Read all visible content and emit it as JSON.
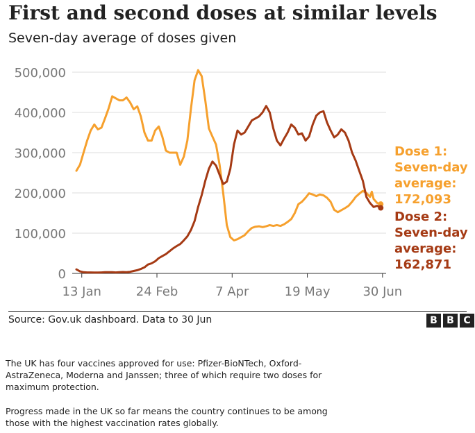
{
  "title": "First and second doses at similar levels",
  "subtitle": "Seven-day average of doses given",
  "source": "Source: Gov.uk dashboard. Data to 30 Jun",
  "logo": {
    "letters": [
      "B",
      "B",
      "C"
    ]
  },
  "paragraphs": [
    "The UK has four vaccines approved for use: Pfizer-BioNTech, Oxford-AstraZeneca, Moderna and Janssen; three of which require two doses for maximum protection.",
    "Progress made in the UK so far means the country continues to be among those with the highest vaccination rates globally."
  ],
  "chart_data": {
    "type": "line",
    "title": "First and second doses at similar levels",
    "subtitle": "Seven-day average of doses given",
    "x_start": "2021-01-10",
    "x_ticks": [
      {
        "day": 3,
        "label": "13 Jan"
      },
      {
        "day": 45,
        "label": "24 Feb"
      },
      {
        "day": 87,
        "label": "7 Apr"
      },
      {
        "day": 129,
        "label": "19 May"
      },
      {
        "day": 171,
        "label": "30 Jun"
      }
    ],
    "xlim": [
      0,
      173
    ],
    "ylim": [
      0,
      500000
    ],
    "y_ticks": [
      {
        "value": 0,
        "label": "0"
      },
      {
        "value": 100000,
        "label": "100,000"
      },
      {
        "value": 200000,
        "label": "200,000"
      },
      {
        "value": 300000,
        "label": "300,000"
      },
      {
        "value": 400000,
        "label": "400,000"
      },
      {
        "value": 500000,
        "label": "500,000"
      }
    ],
    "grid": true,
    "series": [
      {
        "name": "Dose 1",
        "color": "#f6a02d",
        "annotation": [
          "Dose 1:",
          "Seven-day",
          "average:",
          "172,093"
        ],
        "points": [
          [
            0,
            255000
          ],
          [
            2,
            270000
          ],
          [
            4,
            300000
          ],
          [
            6,
            330000
          ],
          [
            8,
            355000
          ],
          [
            10,
            370000
          ],
          [
            12,
            358000
          ],
          [
            14,
            362000
          ],
          [
            16,
            385000
          ],
          [
            18,
            410000
          ],
          [
            20,
            440000
          ],
          [
            22,
            435000
          ],
          [
            24,
            430000
          ],
          [
            26,
            430000
          ],
          [
            28,
            437000
          ],
          [
            30,
            425000
          ],
          [
            32,
            408000
          ],
          [
            34,
            415000
          ],
          [
            36,
            390000
          ],
          [
            38,
            350000
          ],
          [
            40,
            330000
          ],
          [
            42,
            330000
          ],
          [
            44,
            355000
          ],
          [
            46,
            365000
          ],
          [
            48,
            340000
          ],
          [
            50,
            305000
          ],
          [
            52,
            300000
          ],
          [
            54,
            300000
          ],
          [
            56,
            300000
          ],
          [
            58,
            270000
          ],
          [
            60,
            290000
          ],
          [
            62,
            330000
          ],
          [
            64,
            410000
          ],
          [
            66,
            480000
          ],
          [
            68,
            505000
          ],
          [
            70,
            490000
          ],
          [
            72,
            430000
          ],
          [
            74,
            360000
          ],
          [
            76,
            340000
          ],
          [
            78,
            320000
          ],
          [
            80,
            270000
          ],
          [
            82,
            200000
          ],
          [
            84,
            120000
          ],
          [
            86,
            90000
          ],
          [
            88,
            82000
          ],
          [
            90,
            85000
          ],
          [
            92,
            90000
          ],
          [
            94,
            95000
          ],
          [
            96,
            105000
          ],
          [
            98,
            113000
          ],
          [
            100,
            116000
          ],
          [
            102,
            117000
          ],
          [
            104,
            115000
          ],
          [
            106,
            117000
          ],
          [
            108,
            120000
          ],
          [
            110,
            118000
          ],
          [
            112,
            120000
          ],
          [
            114,
            118000
          ],
          [
            116,
            122000
          ],
          [
            118,
            128000
          ],
          [
            120,
            135000
          ],
          [
            122,
            150000
          ],
          [
            124,
            172000
          ],
          [
            126,
            178000
          ],
          [
            128,
            188000
          ],
          [
            130,
            199000
          ],
          [
            132,
            196000
          ],
          [
            134,
            192000
          ],
          [
            136,
            196000
          ],
          [
            138,
            194000
          ],
          [
            140,
            188000
          ],
          [
            142,
            178000
          ],
          [
            144,
            158000
          ],
          [
            146,
            152000
          ],
          [
            148,
            157000
          ],
          [
            150,
            162000
          ],
          [
            152,
            168000
          ],
          [
            154,
            178000
          ],
          [
            156,
            190000
          ],
          [
            158,
            198000
          ],
          [
            160,
            205000
          ],
          [
            162,
            200000
          ],
          [
            164,
            190000
          ],
          [
            165,
            203000
          ],
          [
            166,
            185000
          ],
          [
            168,
            175000
          ],
          [
            170,
            172093
          ]
        ]
      },
      {
        "name": "Dose 2",
        "color": "#a53a14",
        "annotation": [
          "Dose 2:",
          "Seven-day",
          "average:",
          "162,871"
        ],
        "points": [
          [
            0,
            10000
          ],
          [
            2,
            5000
          ],
          [
            4,
            3000
          ],
          [
            6,
            2500
          ],
          [
            8,
            2500
          ],
          [
            10,
            2000
          ],
          [
            12,
            2000
          ],
          [
            14,
            2500
          ],
          [
            16,
            3000
          ],
          [
            18,
            3000
          ],
          [
            20,
            3000
          ],
          [
            22,
            2500
          ],
          [
            24,
            3000
          ],
          [
            26,
            3500
          ],
          [
            28,
            3000
          ],
          [
            30,
            4000
          ],
          [
            32,
            6000
          ],
          [
            34,
            8000
          ],
          [
            36,
            11000
          ],
          [
            38,
            15000
          ],
          [
            40,
            22000
          ],
          [
            42,
            25000
          ],
          [
            44,
            30000
          ],
          [
            46,
            38000
          ],
          [
            48,
            43000
          ],
          [
            50,
            48000
          ],
          [
            52,
            55000
          ],
          [
            54,
            62000
          ],
          [
            56,
            68000
          ],
          [
            58,
            73000
          ],
          [
            60,
            82000
          ],
          [
            62,
            92000
          ],
          [
            64,
            108000
          ],
          [
            66,
            130000
          ],
          [
            68,
            165000
          ],
          [
            70,
            195000
          ],
          [
            72,
            230000
          ],
          [
            74,
            260000
          ],
          [
            76,
            278000
          ],
          [
            78,
            268000
          ],
          [
            80,
            245000
          ],
          [
            82,
            222000
          ],
          [
            84,
            228000
          ],
          [
            86,
            260000
          ],
          [
            88,
            320000
          ],
          [
            90,
            355000
          ],
          [
            92,
            345000
          ],
          [
            94,
            350000
          ],
          [
            96,
            365000
          ],
          [
            98,
            380000
          ],
          [
            100,
            385000
          ],
          [
            102,
            390000
          ],
          [
            104,
            400000
          ],
          [
            106,
            416000
          ],
          [
            108,
            400000
          ],
          [
            110,
            360000
          ],
          [
            112,
            330000
          ],
          [
            114,
            318000
          ],
          [
            116,
            335000
          ],
          [
            118,
            350000
          ],
          [
            120,
            370000
          ],
          [
            122,
            362000
          ],
          [
            124,
            345000
          ],
          [
            126,
            348000
          ],
          [
            128,
            330000
          ],
          [
            130,
            340000
          ],
          [
            132,
            370000
          ],
          [
            134,
            392000
          ],
          [
            136,
            400000
          ],
          [
            138,
            403000
          ],
          [
            140,
            375000
          ],
          [
            142,
            355000
          ],
          [
            144,
            338000
          ],
          [
            146,
            345000
          ],
          [
            148,
            358000
          ],
          [
            150,
            350000
          ],
          [
            152,
            330000
          ],
          [
            154,
            300000
          ],
          [
            156,
            280000
          ],
          [
            158,
            255000
          ],
          [
            160,
            230000
          ],
          [
            162,
            190000
          ],
          [
            164,
            175000
          ],
          [
            166,
            165000
          ],
          [
            168,
            168000
          ],
          [
            170,
            162871
          ]
        ]
      }
    ]
  }
}
